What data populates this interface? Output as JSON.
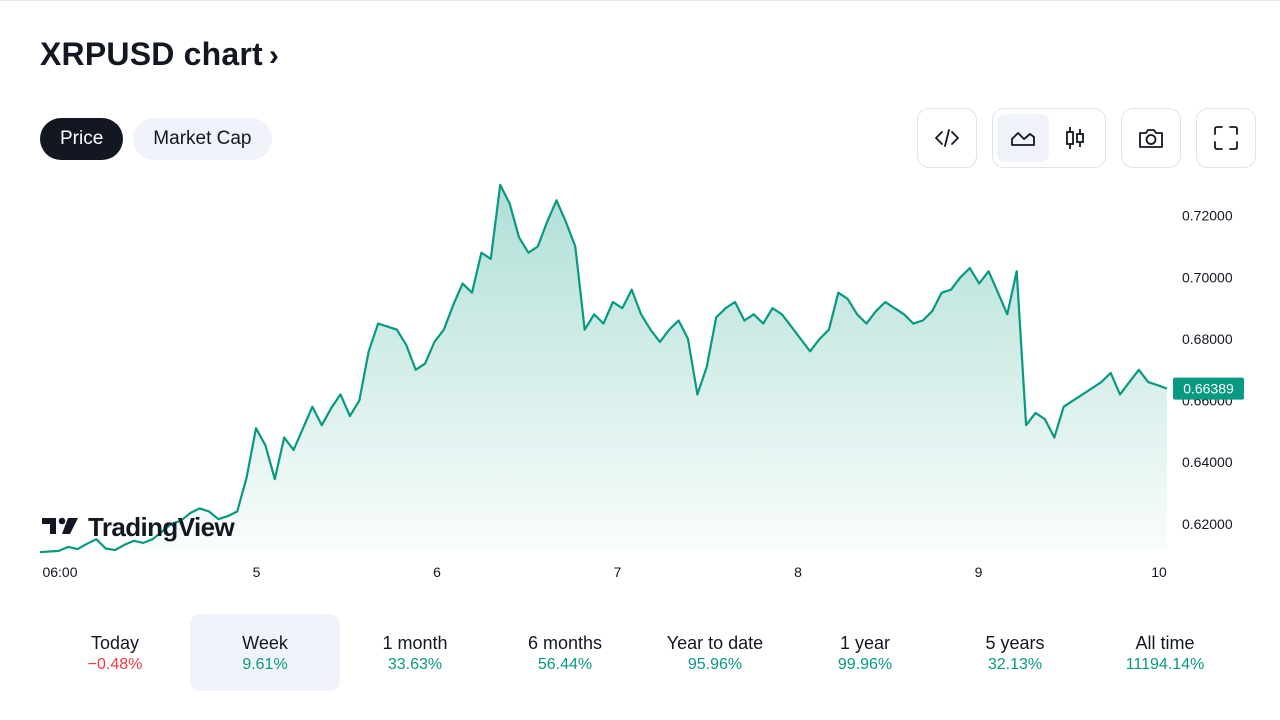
{
  "header": {
    "title": "XRPUSD chart",
    "chevron": "›"
  },
  "tabs": [
    {
      "label": "Price",
      "active": true
    },
    {
      "label": "Market Cap",
      "active": false
    }
  ],
  "toolbar": {
    "embed_icon": "code-brackets-icon",
    "area_icon": "area-chart-icon",
    "candles_icon": "candlestick-icon",
    "snapshot_icon": "camera-icon",
    "fullscreen_icon": "fullscreen-icon",
    "selected": "area"
  },
  "watermark": {
    "text": "TradingView"
  },
  "chart_data": {
    "type": "area",
    "symbol": "XRPUSD",
    "x_ticks": [
      "06:00",
      "5",
      "6",
      "7",
      "8",
      "9",
      "10"
    ],
    "y_ticks": [
      "0.72000",
      "0.70000",
      "0.68000",
      "0.66000",
      "0.64000",
      "0.62000"
    ],
    "ylim": [
      0.6115,
      0.729
    ],
    "last_price": "0.66389",
    "colors": {
      "line": "#089981",
      "fill": "#089981",
      "price_badge": "#089981"
    },
    "grid": false,
    "series": [
      {
        "values": [
          0.6108,
          0.611,
          0.6112,
          0.6125,
          0.6118,
          0.6135,
          0.615,
          0.612,
          0.6115,
          0.6132,
          0.6145,
          0.6138,
          0.615,
          0.6175,
          0.62,
          0.621,
          0.6235,
          0.625,
          0.624,
          0.6215,
          0.6225,
          0.624,
          0.635,
          0.651,
          0.6455,
          0.6345,
          0.648,
          0.644,
          0.651,
          0.658,
          0.652,
          0.6575,
          0.662,
          0.655,
          0.66,
          0.676,
          0.685,
          0.684,
          0.683,
          0.678,
          0.67,
          0.672,
          0.679,
          0.683,
          0.691,
          0.698,
          0.695,
          0.708,
          0.706,
          0.73,
          0.724,
          0.713,
          0.708,
          0.71,
          0.718,
          0.725,
          0.718,
          0.71,
          0.683,
          0.688,
          0.685,
          0.692,
          0.69,
          0.696,
          0.688,
          0.683,
          0.679,
          0.683,
          0.686,
          0.68,
          0.662,
          0.671,
          0.687,
          0.69,
          0.692,
          0.686,
          0.688,
          0.685,
          0.69,
          0.688,
          0.684,
          0.68,
          0.676,
          0.68,
          0.683,
          0.695,
          0.693,
          0.688,
          0.685,
          0.689,
          0.692,
          0.69,
          0.688,
          0.685,
          0.686,
          0.689,
          0.695,
          0.696,
          0.7,
          0.703,
          0.698,
          0.702,
          0.695,
          0.688,
          0.702,
          0.652,
          0.656,
          0.654,
          0.648,
          0.658,
          0.66,
          0.662,
          0.664,
          0.666,
          0.669,
          0.662,
          0.666,
          0.67,
          0.666,
          0.665,
          0.6639
        ]
      }
    ]
  },
  "periods": [
    {
      "label": "Today",
      "value": "−0.48%",
      "trend": "neg",
      "selected": false
    },
    {
      "label": "Week",
      "value": "9.61%",
      "trend": "pos",
      "selected": true
    },
    {
      "label": "1 month",
      "value": "33.63%",
      "trend": "pos",
      "selected": false
    },
    {
      "label": "6 months",
      "value": "56.44%",
      "trend": "pos",
      "selected": false
    },
    {
      "label": "Year to date",
      "value": "95.96%",
      "trend": "pos",
      "selected": false
    },
    {
      "label": "1 year",
      "value": "99.96%",
      "trend": "pos",
      "selected": false
    },
    {
      "label": "5 years",
      "value": "32.13%",
      "trend": "pos",
      "selected": false
    },
    {
      "label": "All time",
      "value": "11194.14%",
      "trend": "pos",
      "selected": false
    }
  ]
}
